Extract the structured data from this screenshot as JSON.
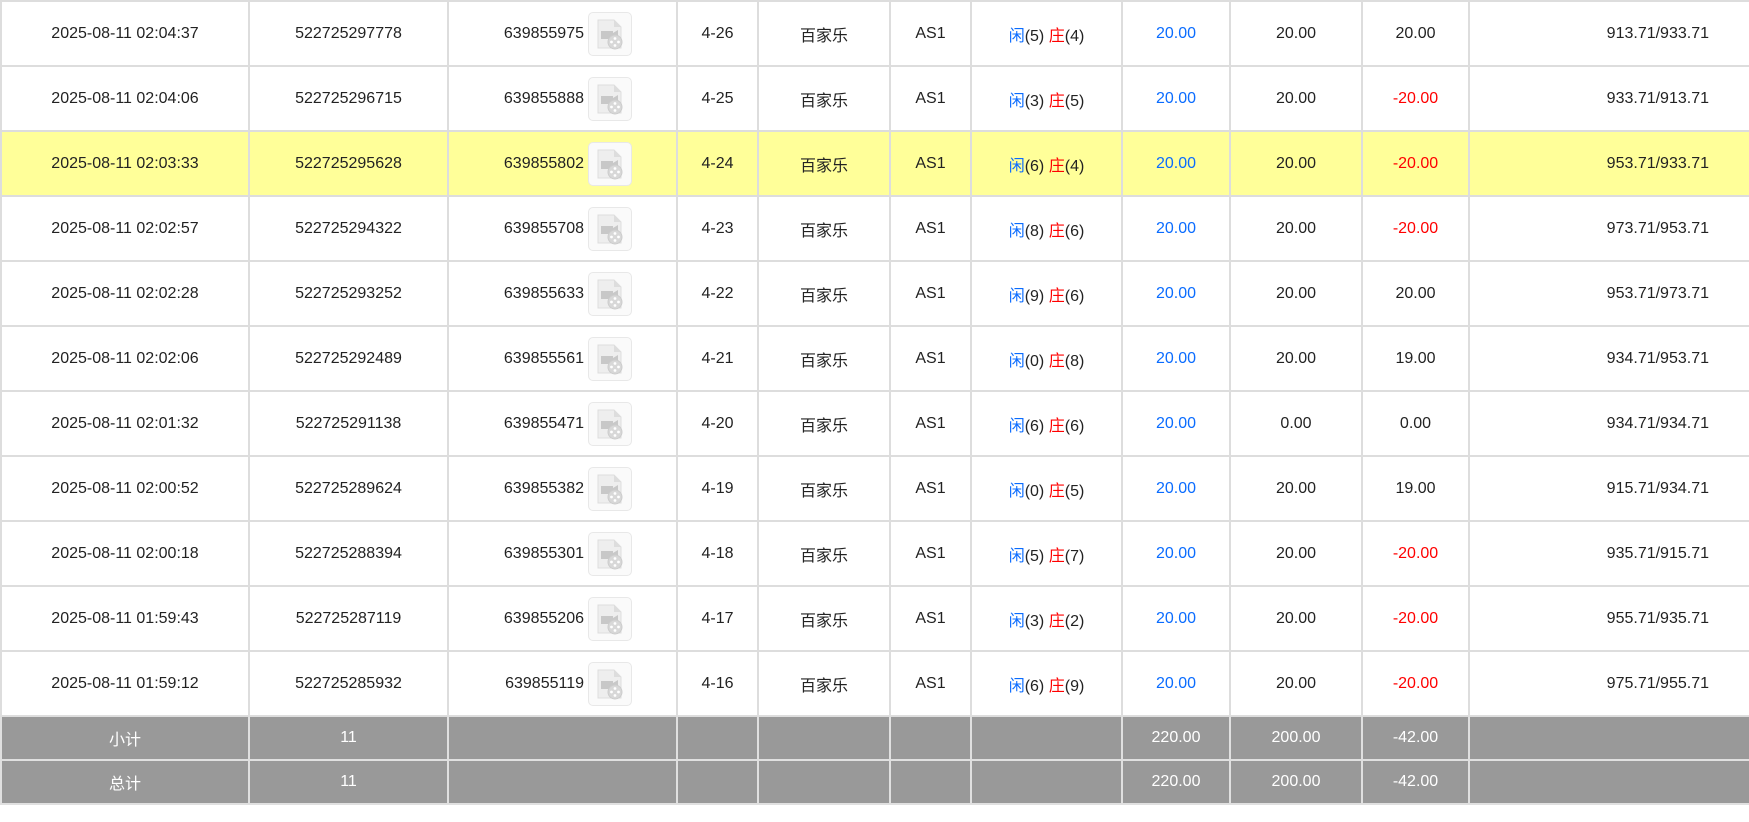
{
  "colors": {
    "player": "#0a6cff",
    "banker": "#ff0000",
    "highlight": "#ffff99",
    "summary_bg": "#999999"
  },
  "icons": {
    "replay": "video-file-icon"
  },
  "rows": [
    {
      "time": "2025-08-11 02:04:37",
      "bet_id": "522725297778",
      "game_id": "639855975",
      "shoe": "4-26",
      "game": "百家乐",
      "table": "AS1",
      "p": "闲",
      "pv": "(5)",
      "b": "庄",
      "bv": "(4)",
      "bet": "20.00",
      "valid": "20.00",
      "win": "20.00",
      "neg": false,
      "balance": "913.71/933.71"
    },
    {
      "time": "2025-08-11 02:04:06",
      "bet_id": "522725296715",
      "game_id": "639855888",
      "shoe": "4-25",
      "game": "百家乐",
      "table": "AS1",
      "p": "闲",
      "pv": "(3)",
      "b": "庄",
      "bv": "(5)",
      "bet": "20.00",
      "valid": "20.00",
      "win": "-20.00",
      "neg": true,
      "balance": "933.71/913.71"
    },
    {
      "time": "2025-08-11 02:03:33",
      "bet_id": "522725295628",
      "game_id": "639855802",
      "shoe": "4-24",
      "game": "百家乐",
      "table": "AS1",
      "p": "闲",
      "pv": "(6)",
      "b": "庄",
      "bv": "(4)",
      "bet": "20.00",
      "valid": "20.00",
      "win": "-20.00",
      "neg": true,
      "balance": "953.71/933.71",
      "highlight": true
    },
    {
      "time": "2025-08-11 02:02:57",
      "bet_id": "522725294322",
      "game_id": "639855708",
      "shoe": "4-23",
      "game": "百家乐",
      "table": "AS1",
      "p": "闲",
      "pv": "(8)",
      "b": "庄",
      "bv": "(6)",
      "bet": "20.00",
      "valid": "20.00",
      "win": "-20.00",
      "neg": true,
      "balance": "973.71/953.71"
    },
    {
      "time": "2025-08-11 02:02:28",
      "bet_id": "522725293252",
      "game_id": "639855633",
      "shoe": "4-22",
      "game": "百家乐",
      "table": "AS1",
      "p": "闲",
      "pv": "(9)",
      "b": "庄",
      "bv": "(6)",
      "bet": "20.00",
      "valid": "20.00",
      "win": "20.00",
      "neg": false,
      "balance": "953.71/973.71"
    },
    {
      "time": "2025-08-11 02:02:06",
      "bet_id": "522725292489",
      "game_id": "639855561",
      "shoe": "4-21",
      "game": "百家乐",
      "table": "AS1",
      "p": "闲",
      "pv": "(0)",
      "b": "庄",
      "bv": "(8)",
      "bet": "20.00",
      "valid": "20.00",
      "win": "19.00",
      "neg": false,
      "balance": "934.71/953.71"
    },
    {
      "time": "2025-08-11 02:01:32",
      "bet_id": "522725291138",
      "game_id": "639855471",
      "shoe": "4-20",
      "game": "百家乐",
      "table": "AS1",
      "p": "闲",
      "pv": "(6)",
      "b": "庄",
      "bv": "(6)",
      "bet": "20.00",
      "valid": "0.00",
      "win": "0.00",
      "neg": false,
      "balance": "934.71/934.71"
    },
    {
      "time": "2025-08-11 02:00:52",
      "bet_id": "522725289624",
      "game_id": "639855382",
      "shoe": "4-19",
      "game": "百家乐",
      "table": "AS1",
      "p": "闲",
      "pv": "(0)",
      "b": "庄",
      "bv": "(5)",
      "bet": "20.00",
      "valid": "20.00",
      "win": "19.00",
      "neg": false,
      "balance": "915.71/934.71"
    },
    {
      "time": "2025-08-11 02:00:18",
      "bet_id": "522725288394",
      "game_id": "639855301",
      "shoe": "4-18",
      "game": "百家乐",
      "table": "AS1",
      "p": "闲",
      "pv": "(5)",
      "b": "庄",
      "bv": "(7)",
      "bet": "20.00",
      "valid": "20.00",
      "win": "-20.00",
      "neg": true,
      "balance": "935.71/915.71"
    },
    {
      "time": "2025-08-11 01:59:43",
      "bet_id": "522725287119",
      "game_id": "639855206",
      "shoe": "4-17",
      "game": "百家乐",
      "table": "AS1",
      "p": "闲",
      "pv": "(3)",
      "b": "庄",
      "bv": "(2)",
      "bet": "20.00",
      "valid": "20.00",
      "win": "-20.00",
      "neg": true,
      "balance": "955.71/935.71"
    },
    {
      "time": "2025-08-11 01:59:12",
      "bet_id": "522725285932",
      "game_id": "639855119",
      "shoe": "4-16",
      "game": "百家乐",
      "table": "AS1",
      "p": "闲",
      "pv": "(6)",
      "b": "庄",
      "bv": "(9)",
      "bet": "20.00",
      "valid": "20.00",
      "win": "-20.00",
      "neg": true,
      "balance": "975.71/955.71"
    }
  ],
  "summary": [
    {
      "label": "小计",
      "count": "11",
      "bet": "220.00",
      "valid": "200.00",
      "win": "-42.00"
    },
    {
      "label": "总计",
      "count": "11",
      "bet": "220.00",
      "valid": "200.00",
      "win": "-42.00"
    }
  ]
}
